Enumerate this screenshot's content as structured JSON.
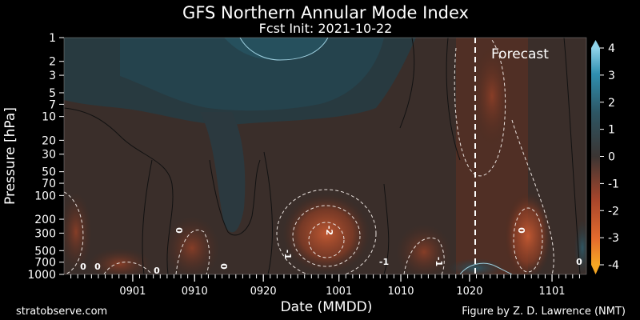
{
  "chart_data": {
    "type": "heatmap",
    "title": "GFS Northern Annular Mode Index",
    "subtitle": "Fcst Init: 2021-10-22",
    "xlabel": "Date (MMDD)",
    "ylabel": "Pressure [hPa]",
    "x_ticks": [
      "0901",
      "0910",
      "0920",
      "1001",
      "1010",
      "1020",
      "1101"
    ],
    "y_ticks": [
      1,
      2,
      3,
      5,
      7,
      10,
      20,
      30,
      50,
      70,
      100,
      200,
      300,
      500,
      700,
      1000
    ],
    "y_scale": "log",
    "y_inverted": true,
    "ylim": [
      1000,
      1
    ],
    "colorbar": {
      "ticks": [
        4,
        3,
        2,
        1,
        0,
        -1,
        -2,
        -3,
        -4
      ],
      "range": [
        -4,
        4
      ],
      "colors": {
        "low": "#f5a623",
        "neg": "#d2542a",
        "zero": "#3b3533",
        "pos": "#2f8fb0",
        "high": "#7ec8e3"
      }
    },
    "contour_labels": [
      "0",
      "0",
      "0",
      "0",
      "-2",
      "-1",
      "0",
      "-1",
      "-1",
      "0",
      "0"
    ],
    "forecast_label": "Forecast",
    "forecast_init": "1022",
    "footer_left": "stratobserve.com",
    "footer_right": "Figure by Z. D. Lawrence (NMT)"
  }
}
